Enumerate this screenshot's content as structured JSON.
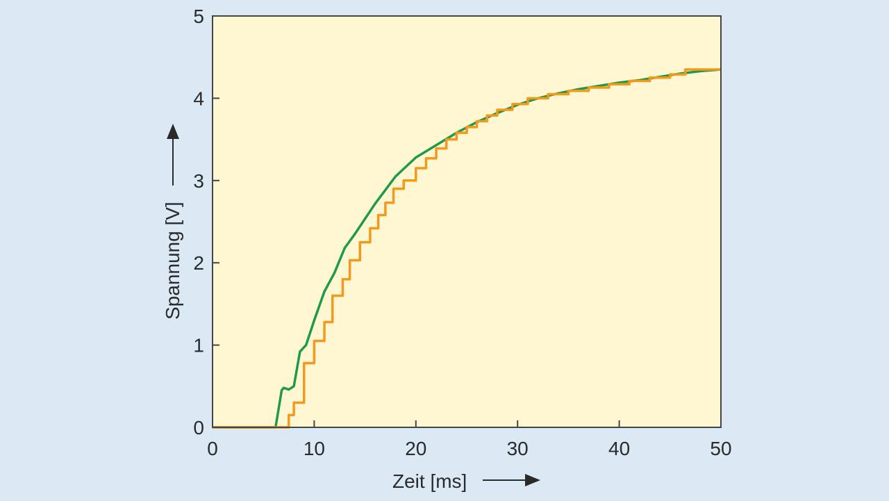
{
  "colors": {
    "page_background": "#dbe9f4",
    "plot_background": "#fff6d2",
    "axis": "#444444",
    "text": "#2a2a2a",
    "green_series": "#1f9a48",
    "orange_series": "#f39a1e"
  },
  "chart_data": {
    "type": "line",
    "title": "",
    "xlabel": "Zeit [ms]",
    "ylabel": "Spannung [V]",
    "xlim": [
      0,
      50
    ],
    "ylim": [
      0,
      5
    ],
    "xticks": [
      "0",
      "10",
      "20",
      "30",
      "40",
      "50"
    ],
    "yticks": [
      "0",
      "1",
      "2",
      "3",
      "4",
      "5"
    ],
    "grid": false,
    "legend": "none",
    "series": [
      {
        "color": "#1f9a48",
        "style": "smooth",
        "x": [
          0,
          6.2,
          6.4,
          6.6,
          6.8,
          7.0,
          7.5,
          8.0,
          8.6,
          9.2,
          10.0,
          11.0,
          12.0,
          13.0,
          14.0,
          16.0,
          18.0,
          20.0,
          22.0,
          24.0,
          26.0,
          28.0,
          30.0,
          32.0,
          34.0,
          36.0,
          38.0,
          40.0,
          42.0,
          44.0,
          46.0,
          48.0,
          50.0
        ],
        "y": [
          0,
          0,
          0.15,
          0.3,
          0.45,
          0.48,
          0.46,
          0.5,
          0.92,
          1.0,
          1.3,
          1.65,
          1.88,
          2.18,
          2.35,
          2.72,
          3.05,
          3.28,
          3.43,
          3.58,
          3.71,
          3.82,
          3.92,
          4.0,
          4.06,
          4.11,
          4.15,
          4.19,
          4.22,
          4.26,
          4.3,
          4.33,
          4.35
        ]
      },
      {
        "color": "#f39a1e",
        "style": "step",
        "x": [
          0,
          7.0,
          7.5,
          8.0,
          9.0,
          10.0,
          11.0,
          11.8,
          12.8,
          13.5,
          14.5,
          15.5,
          16.3,
          17.0,
          17.8,
          18.8,
          20.0,
          21.0,
          22.0,
          23.0,
          24.0,
          25.0,
          26.0,
          27.0,
          28.0,
          29.5,
          31.0,
          33.0,
          35.0,
          37.0,
          39.0,
          41.0,
          43.0,
          45.0,
          46.5,
          50.0
        ],
        "y": [
          0,
          0,
          0.15,
          0.3,
          0.78,
          1.05,
          1.28,
          1.6,
          1.8,
          2.03,
          2.25,
          2.42,
          2.58,
          2.73,
          2.9,
          3.0,
          3.15,
          3.27,
          3.39,
          3.5,
          3.58,
          3.65,
          3.72,
          3.79,
          3.86,
          3.93,
          4.0,
          4.05,
          4.09,
          4.13,
          4.17,
          4.21,
          4.25,
          4.29,
          4.35,
          4.35
        ]
      }
    ]
  }
}
